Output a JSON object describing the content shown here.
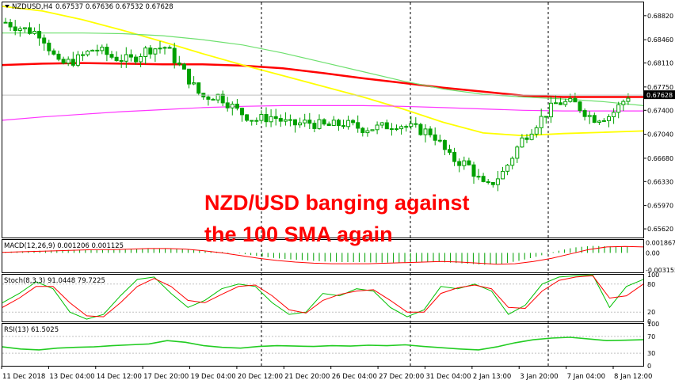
{
  "chart_data": [
    {
      "type": "candlestick",
      "title": "NZDUSD,H4",
      "ohlc_header": "0.67537 0.67636 0.67532 0.67628",
      "current_price_label": "0.67628",
      "current_price": 0.67628,
      "ylim": [
        0.6549,
        0.6902
      ],
      "y_ticks": [
        "0.68820",
        "0.68460",
        "0.68110",
        "0.67750",
        "0.67400",
        "0.67040",
        "0.66680",
        "0.66330",
        "0.65970",
        "0.65620"
      ],
      "x_ticks": [
        "11 Dec 2018",
        "13 Dec 04:00",
        "14 Dec 12:00",
        "17 Dec 20:00",
        "19 Dec 04:00",
        "20 Dec 12:00",
        "21 Dec 20:00",
        "26 Dec 04:00",
        "27 Dec 20:00",
        "31 Dec 04:00",
        "2 Jan 13:00",
        "3 Jan 20:00",
        "7 Jan 04:00",
        "8 Jan 12:00"
      ],
      "annotation": [
        "NZD/USD banging against",
        "the 100 SMA again"
      ],
      "close_anchors": [
        0.6872,
        0.6862,
        0.6855,
        0.6808,
        0.6816,
        0.6833,
        0.682,
        0.6815,
        0.6832,
        0.6835,
        0.6798,
        0.676,
        0.6762,
        0.674,
        0.6725,
        0.6731,
        0.6718,
        0.6722,
        0.6716,
        0.672,
        0.6713,
        0.6714,
        0.672,
        0.6712,
        0.6706,
        0.6668,
        0.6658,
        0.6622,
        0.6648,
        0.6695,
        0.6725,
        0.6752,
        0.675,
        0.6728,
        0.6732,
        0.6762
      ],
      "series": [
        {
          "name": "SMA 100 (red)",
          "color": "#ff0000",
          "values": [
            0.6808,
            0.681,
            0.6811,
            0.681,
            0.6809,
            0.6809,
            0.6807,
            0.6803,
            0.6796,
            0.6788,
            0.6781,
            0.6774,
            0.6768,
            0.6762,
            0.676,
            0.676,
            0.676
          ]
        },
        {
          "name": "SMA 50 (yellow)",
          "color": "#ffff00",
          "values": [
            0.6896,
            0.6889,
            0.6876,
            0.686,
            0.6843,
            0.6825,
            0.6808,
            0.6792,
            0.6776,
            0.676,
            0.6742,
            0.6722,
            0.6706,
            0.6702,
            0.6705,
            0.6707,
            0.6709
          ]
        },
        {
          "name": "SMA 200 (light green)",
          "color": "#6ee06e",
          "values": [
            0.6856,
            0.6856,
            0.6856,
            0.6855,
            0.6852,
            0.6846,
            0.6838,
            0.6826,
            0.6812,
            0.6798,
            0.6784,
            0.6772,
            0.6764,
            0.676,
            0.6757,
            0.6753,
            0.6747
          ]
        },
        {
          "name": "SMA (magenta)",
          "color": "#ff33ff",
          "values": [
            0.6725,
            0.673,
            0.6734,
            0.6738,
            0.6741,
            0.6744,
            0.6746,
            0.6747,
            0.6747,
            0.6747,
            0.6746,
            0.6744,
            0.6742,
            0.674,
            0.6739,
            0.6739,
            0.6739
          ]
        }
      ]
    },
    {
      "type": "bar+line",
      "title": "MACD(12,26,9) 0.001206 0.001125",
      "y_ticks": [
        "0.001867",
        "0.00",
        "-0.003155"
      ],
      "ylim": [
        -0.0036,
        0.0024
      ],
      "histogram_color": "#00a000",
      "signal_color": "#ff0000",
      "histogram": [
        0.0002,
        0.0003,
        0.0004,
        0.0005,
        0.0006,
        0.0005,
        0.0006,
        0.0007,
        0.0008,
        0.0008,
        0.0007,
        0.0004,
        0.0002,
        0.0,
        -0.0005,
        -0.0009,
        -0.0012,
        -0.0014,
        -0.0016,
        -0.0017,
        -0.0017,
        -0.0018,
        -0.0018,
        -0.0017,
        -0.0016,
        -0.0018,
        -0.002,
        -0.0022,
        -0.002,
        -0.0014,
        -0.0006,
        0.0003,
        0.001,
        0.0013,
        0.0012,
        0.0012
      ],
      "signal": [
        0.0001,
        0.0002,
        0.0003,
        0.0004,
        0.0005,
        0.0006,
        0.0006,
        0.0007,
        0.0008,
        0.0008,
        0.0007,
        0.0004,
        0.0,
        -0.0005,
        -0.001,
        -0.0014,
        -0.0017,
        -0.0019,
        -0.002,
        -0.002,
        -0.002,
        -0.0019,
        -0.0018,
        -0.0017,
        -0.0016,
        -0.0017,
        -0.0019,
        -0.0021,
        -0.002,
        -0.0016,
        -0.001,
        -0.0002,
        0.0006,
        0.0011,
        0.0012,
        0.0011
      ]
    },
    {
      "type": "line",
      "title": "Stoch(8,3,3) 91.0448 79.7225",
      "y_ticks": [
        "100",
        "80",
        "20",
        "0"
      ],
      "ylim": [
        0,
        100
      ],
      "levels": [
        80,
        20
      ],
      "series": [
        {
          "name": "main",
          "color": "#00c000",
          "values": [
            40,
            60,
            85,
            70,
            20,
            5,
            15,
            55,
            90,
            95,
            60,
            30,
            45,
            70,
            80,
            75,
            40,
            15,
            20,
            60,
            55,
            70,
            65,
            30,
            10,
            25,
            75,
            70,
            80,
            65,
            15,
            35,
            80,
            95,
            98,
            100,
            30,
            75,
            90
          ]
        },
        {
          "name": "signal",
          "color": "#ff0000",
          "values": [
            30,
            50,
            75,
            75,
            40,
            12,
            10,
            40,
            75,
            92,
            75,
            45,
            40,
            58,
            75,
            78,
            55,
            25,
            18,
            45,
            58,
            65,
            68,
            45,
            20,
            20,
            60,
            72,
            78,
            70,
            30,
            28,
            65,
            88,
            95,
            98,
            50,
            55,
            80
          ]
        }
      ]
    },
    {
      "type": "line",
      "title": "RSI(13) 61.5025",
      "y_ticks": [
        "100",
        "70",
        "30",
        "0"
      ],
      "ylim": [
        0,
        100
      ],
      "levels": [
        70,
        30
      ],
      "series": [
        {
          "name": "RSI",
          "color": "#22cc22",
          "values": [
            45,
            40,
            38,
            42,
            44,
            45,
            48,
            50,
            52,
            60,
            56,
            48,
            44,
            42,
            46,
            48,
            47,
            46,
            48,
            47,
            49,
            48,
            50,
            46,
            43,
            40,
            38,
            45,
            55,
            62,
            66,
            68,
            64,
            60,
            61,
            62
          ]
        }
      ]
    }
  ]
}
